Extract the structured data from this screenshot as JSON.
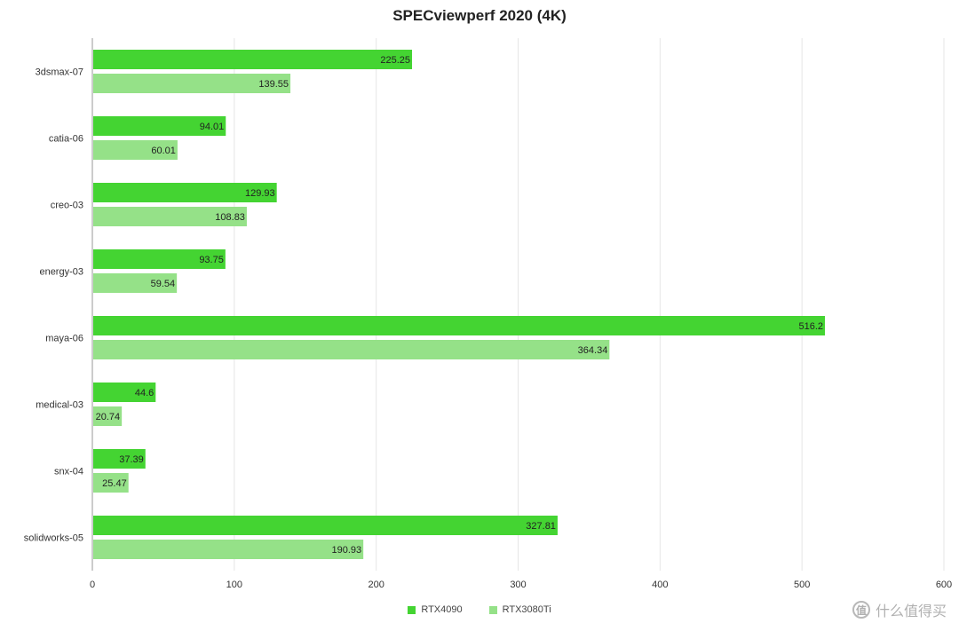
{
  "chart_data": {
    "type": "bar",
    "orientation": "horizontal",
    "title": "SPECviewperf 2020 (4K)",
    "categories": [
      "3dsmax-07",
      "catia-06",
      "creo-03",
      "energy-03",
      "maya-06",
      "medical-03",
      "snx-04",
      "solidworks-05"
    ],
    "series": [
      {
        "name": "RTX4090",
        "color": "#44d432",
        "values": [
          225.25,
          94.01,
          129.93,
          93.75,
          516.2,
          44.6,
          37.39,
          327.81
        ],
        "labels": [
          "225.25",
          "94.01",
          "129.93",
          "93.75",
          "516.2",
          "44.6",
          "37.39",
          "327.81"
        ]
      },
      {
        "name": "RTX3080Ti",
        "color": "#95e188",
        "values": [
          139.55,
          60.01,
          108.83,
          59.54,
          364.34,
          20.74,
          25.47,
          190.93
        ],
        "labels": [
          "139.55",
          "60.01",
          "108.83",
          "59.54",
          "364.34",
          "20.74",
          "25.47",
          "190.93"
        ]
      }
    ],
    "xlim": [
      0,
      600
    ],
    "xticks": [
      0,
      100,
      200,
      300,
      400,
      500,
      600
    ],
    "xtick_labels": [
      "0",
      "100",
      "200",
      "300",
      "400",
      "500",
      "600"
    ],
    "grid": true,
    "legend_position": "bottom-center",
    "data_labels": true
  },
  "watermark": {
    "icon": "值",
    "text": "什么值得买"
  }
}
